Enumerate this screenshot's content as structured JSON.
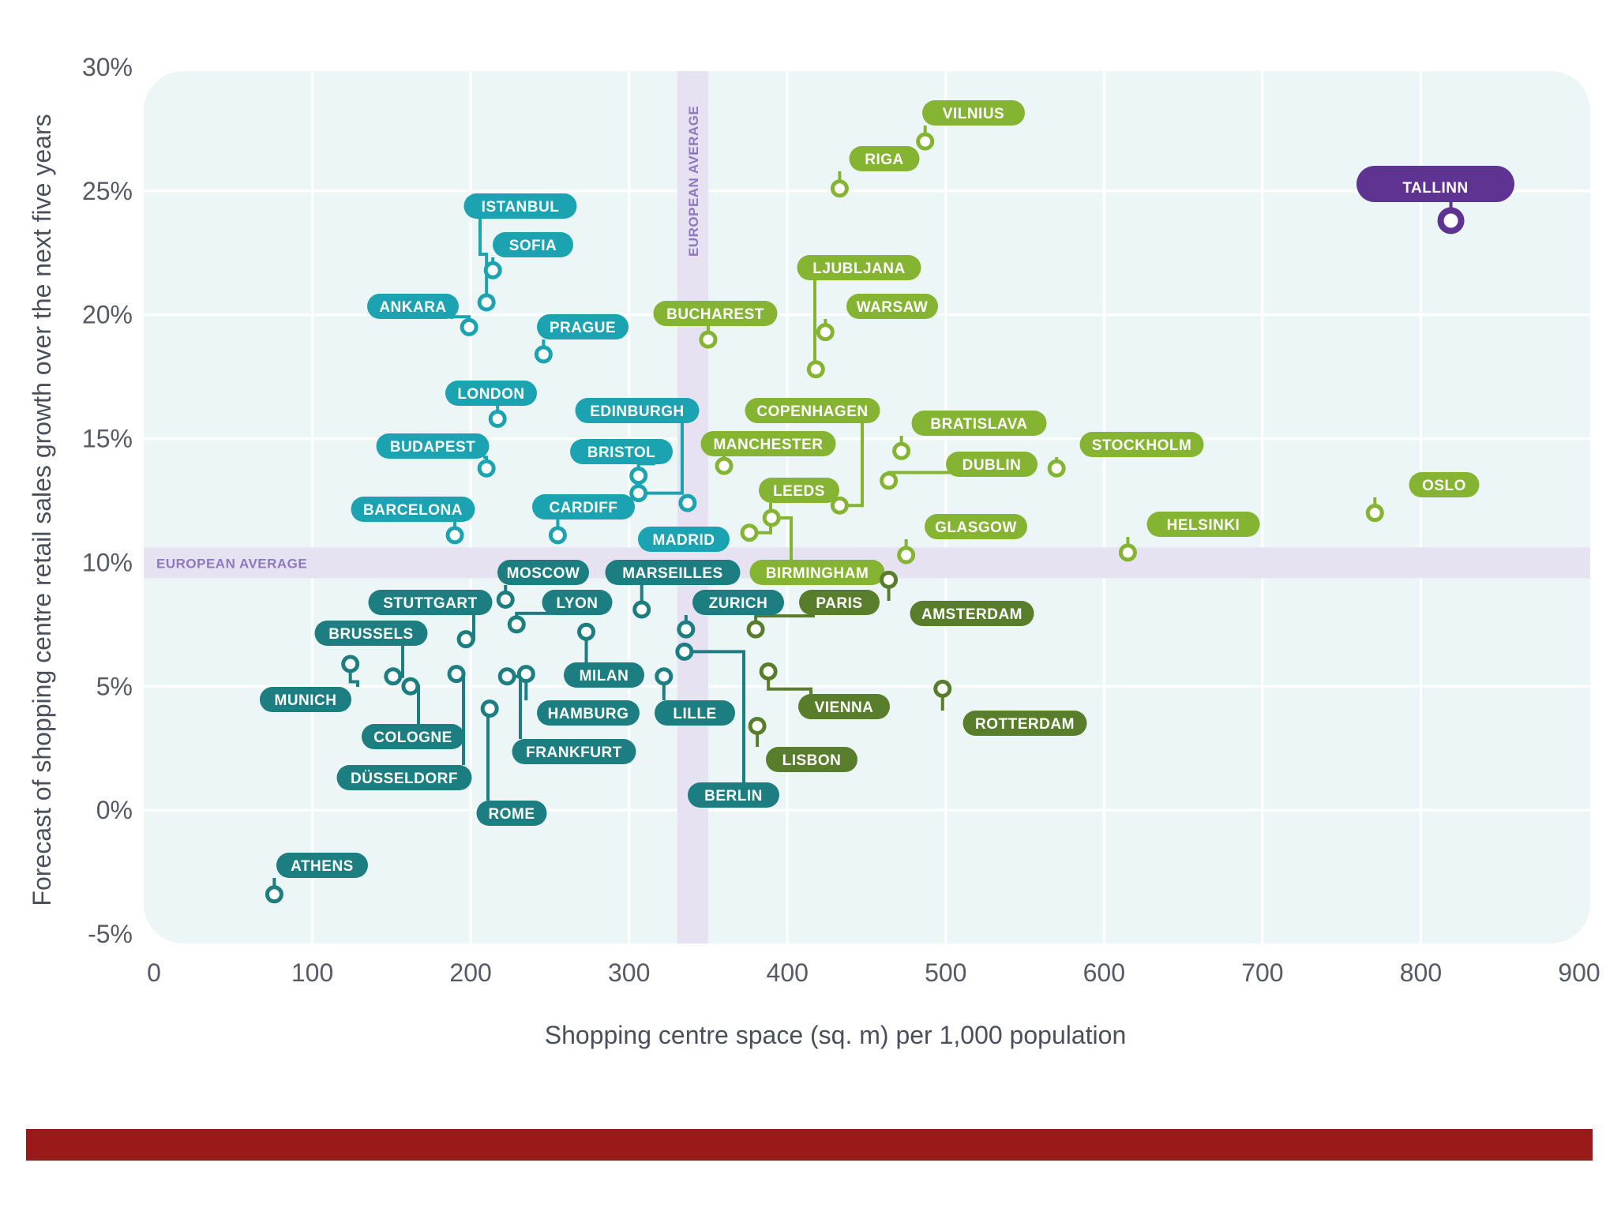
{
  "chart_data": {
    "type": "scatter",
    "xlabel": "Shopping centre space (sq. m) per 1,000 population",
    "ylabel": "Forecast of shopping centre retail sales growth over the next five years",
    "xlim": [
      0,
      900
    ],
    "ylim": [
      -5,
      30
    ],
    "x_ticks": [
      "0",
      "100",
      "200",
      "300",
      "400",
      "500",
      "600",
      "700",
      "800",
      "900"
    ],
    "y_ticks": [
      "-5%",
      "0%",
      "5%",
      "10%",
      "15%",
      "20%",
      "25%",
      "30%"
    ],
    "grid": true,
    "reference_lines": {
      "x": {
        "value": 340,
        "label": "EUROPEAN AVERAGE"
      },
      "y": {
        "value": 10,
        "label": "EUROPEAN AVERAGE"
      }
    },
    "colors": {
      "teal": "#1ba3b1",
      "dark_teal": "#1c7e80",
      "green": "#84b432",
      "dark_green": "#587e2c",
      "purple": "#5e3392",
      "panel": "#edf6f7",
      "average_band": "#e6e2f1"
    },
    "points": [
      {
        "name": "TALLINN",
        "x": 819,
        "y": 23.8,
        "color": "purple"
      },
      {
        "name": "VILNIUS",
        "x": 487,
        "y": 27,
        "color": "green"
      },
      {
        "name": "RIGA",
        "x": 433,
        "y": 25.1,
        "color": "green"
      },
      {
        "name": "ISTANBUL",
        "x": 210,
        "y": 20.5,
        "color": "teal"
      },
      {
        "name": "SOFIA",
        "x": 214,
        "y": 21.8,
        "color": "teal"
      },
      {
        "name": "ANKARA",
        "x": 199,
        "y": 19.5,
        "color": "teal"
      },
      {
        "name": "PRAGUE",
        "x": 246,
        "y": 18.4,
        "color": "teal"
      },
      {
        "name": "LONDON",
        "x": 217,
        "y": 15.8,
        "color": "teal"
      },
      {
        "name": "BUDAPEST",
        "x": 210,
        "y": 13.8,
        "color": "teal"
      },
      {
        "name": "BARCELONA",
        "x": 190,
        "y": 11.1,
        "color": "teal"
      },
      {
        "name": "EDINBURGH",
        "x": 306,
        "y": 12.8,
        "color": "teal"
      },
      {
        "name": "BRISTOL",
        "x": 306,
        "y": 13.5,
        "color": "teal"
      },
      {
        "name": "CARDIFF",
        "x": 255,
        "y": 11.1,
        "color": "teal"
      },
      {
        "name": "MADRID",
        "x": 337,
        "y": 12.4,
        "color": "teal"
      },
      {
        "name": "BUCHAREST",
        "x": 350,
        "y": 19.0,
        "color": "green"
      },
      {
        "name": "LJUBLJANA",
        "x": 418,
        "y": 17.8,
        "color": "green"
      },
      {
        "name": "WARSAW",
        "x": 424,
        "y": 19.3,
        "color": "green"
      },
      {
        "name": "COPENHAGEN",
        "x": 433,
        "y": 12.3,
        "color": "green"
      },
      {
        "name": "MANCHESTER",
        "x": 360,
        "y": 13.9,
        "color": "green"
      },
      {
        "name": "LEEDS",
        "x": 376,
        "y": 11.2,
        "color": "green"
      },
      {
        "name": "BIRMINGHAM",
        "x": 390,
        "y": 11.8,
        "color": "green"
      },
      {
        "name": "BRATISLAVA",
        "x": 472,
        "y": 14.5,
        "color": "green"
      },
      {
        "name": "DUBLIN",
        "x": 464,
        "y": 13.3,
        "color": "green"
      },
      {
        "name": "GLASGOW",
        "x": 475,
        "y": 10.3,
        "color": "green"
      },
      {
        "name": "STOCKHOLM",
        "x": 570,
        "y": 13.8,
        "color": "green"
      },
      {
        "name": "HELSINKI",
        "x": 615,
        "y": 10.4,
        "color": "green"
      },
      {
        "name": "OSLO",
        "x": 771,
        "y": 12.0,
        "color": "green"
      },
      {
        "name": "MOSCOW",
        "x": 222,
        "y": 8.5,
        "color": "dark_teal"
      },
      {
        "name": "MARSEILLES",
        "x": 308,
        "y": 8.1,
        "color": "dark_teal"
      },
      {
        "name": "STUTTGART",
        "x": 197,
        "y": 6.9,
        "color": "dark_teal"
      },
      {
        "name": "LYON",
        "x": 229,
        "y": 7.5,
        "color": "dark_teal"
      },
      {
        "name": "BRUSSELS",
        "x": 151,
        "y": 5.4,
        "color": "dark_teal"
      },
      {
        "name": "MUNICH",
        "x": 124,
        "y": 5.9,
        "color": "dark_teal"
      },
      {
        "name": "COLOGNE",
        "x": 162,
        "y": 5.0,
        "color": "dark_teal"
      },
      {
        "name": "DÜSSELDORF",
        "x": 191,
        "y": 5.5,
        "color": "dark_teal"
      },
      {
        "name": "MILAN",
        "x": 273,
        "y": 7.2,
        "color": "dark_teal"
      },
      {
        "name": "HAMBURG",
        "x": 235,
        "y": 5.5,
        "color": "dark_teal"
      },
      {
        "name": "FRANKFURT",
        "x": 223,
        "y": 5.4,
        "color": "dark_teal"
      },
      {
        "name": "ROME",
        "x": 212,
        "y": 4.1,
        "color": "dark_teal"
      },
      {
        "name": "ZURICH",
        "x": 336,
        "y": 7.3,
        "color": "dark_teal"
      },
      {
        "name": "LILLE",
        "x": 322,
        "y": 5.4,
        "color": "dark_teal"
      },
      {
        "name": "BERLIN",
        "x": 335,
        "y": 6.4,
        "color": "dark_teal"
      },
      {
        "name": "ATHENS",
        "x": 76,
        "y": -3.4,
        "color": "dark_teal"
      },
      {
        "name": "PARIS",
        "x": 380,
        "y": 7.3,
        "color": "dark_green"
      },
      {
        "name": "AMSTERDAM",
        "x": 464,
        "y": 9.3,
        "color": "dark_green"
      },
      {
        "name": "VIENNA",
        "x": 388,
        "y": 5.6,
        "color": "dark_green"
      },
      {
        "name": "LISBON",
        "x": 381,
        "y": 3.4,
        "color": "dark_green"
      },
      {
        "name": "ROTTERDAM",
        "x": 498,
        "y": 4.9,
        "color": "dark_green"
      }
    ]
  }
}
